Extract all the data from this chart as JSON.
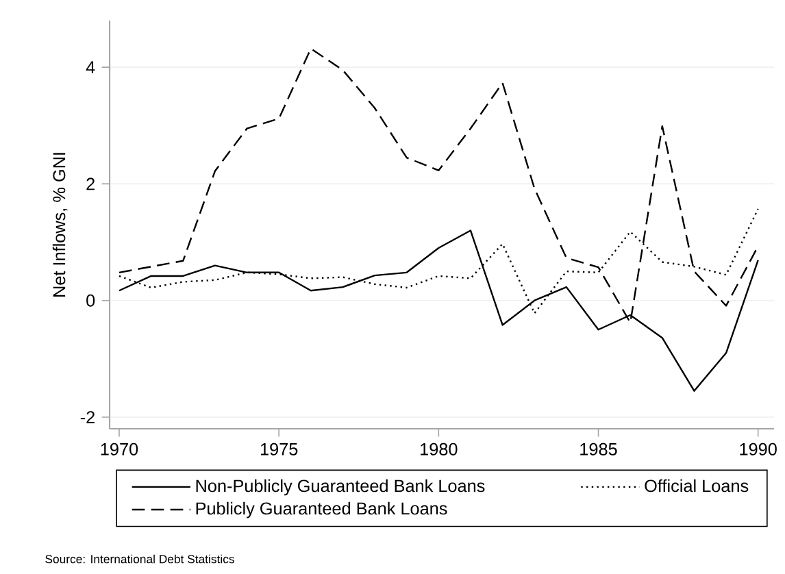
{
  "chart_data": {
    "type": "line",
    "ylabel": "Net Inflows, % GNI",
    "x": [
      1970,
      1971,
      1972,
      1973,
      1974,
      1975,
      1976,
      1977,
      1978,
      1979,
      1980,
      1981,
      1982,
      1983,
      1984,
      1985,
      1986,
      1987,
      1988,
      1989,
      1990
    ],
    "series": [
      {
        "name": "Non-Publicly Guaranteed Bank Loans",
        "color": "#000000",
        "line_style": "solid",
        "values": [
          0.17,
          0.42,
          0.42,
          0.6,
          0.48,
          0.48,
          0.17,
          0.23,
          0.43,
          0.48,
          0.9,
          1.2,
          -0.42,
          0.0,
          0.23,
          -0.5,
          -0.25,
          -0.64,
          -1.55,
          -0.9,
          0.69
        ]
      },
      {
        "name": "Official Loans",
        "color": "#000000",
        "line_style": "dotted",
        "values": [
          0.42,
          0.22,
          0.32,
          0.35,
          0.48,
          0.45,
          0.38,
          0.4,
          0.28,
          0.22,
          0.42,
          0.38,
          0.97,
          -0.22,
          0.5,
          0.48,
          1.18,
          0.66,
          0.58,
          0.44,
          1.57
        ]
      },
      {
        "name": "Publicly Guaranteed Bank Loans",
        "color": "#000000",
        "line_style": "dashed",
        "values": [
          0.48,
          0.58,
          0.68,
          2.22,
          2.95,
          3.12,
          4.32,
          3.95,
          3.3,
          2.45,
          2.23,
          2.95,
          3.73,
          1.92,
          0.73,
          0.57,
          -0.38,
          2.99,
          0.5,
          -0.09,
          0.93
        ]
      }
    ],
    "xlim": [
      1969.7,
      1990.5
    ],
    "ylim": [
      -2.2,
      4.8
    ],
    "xticks": [
      1970,
      1975,
      1980,
      1985,
      1990
    ],
    "yticks": [
      -2,
      0,
      2,
      4
    ],
    "grid": "y",
    "legend": "bottom",
    "annotations": [
      "Source: International Debt Statistics"
    ]
  }
}
